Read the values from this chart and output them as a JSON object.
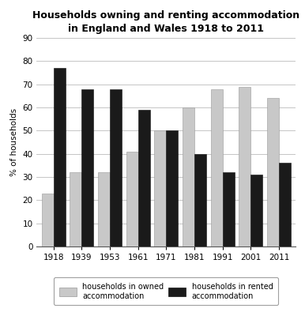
{
  "title_line1": "Households owning and renting accommodation",
  "title_line2": "in England and Wales 1918 to 2011",
  "years": [
    "1918",
    "1939",
    "1953",
    "1961",
    "1971",
    "1981",
    "1991",
    "2001",
    "2011"
  ],
  "owned": [
    23,
    32,
    32,
    41,
    50,
    60,
    68,
    69,
    64
  ],
  "rented": [
    77,
    68,
    68,
    59,
    50,
    40,
    32,
    31,
    36
  ],
  "owned_color": "#c8c8c8",
  "rented_color": "#1a1a1a",
  "ylabel": "% of households",
  "ylim": [
    0,
    90
  ],
  "yticks": [
    0,
    10,
    20,
    30,
    40,
    50,
    60,
    70,
    80,
    90
  ],
  "legend_owned": "households in owned\naccommodation",
  "legend_rented": "households in rented\naccommodation",
  "bar_width": 0.42,
  "title_fontsize": 9.0,
  "axis_fontsize": 7.5,
  "legend_fontsize": 7.0,
  "background_color": "#ffffff"
}
